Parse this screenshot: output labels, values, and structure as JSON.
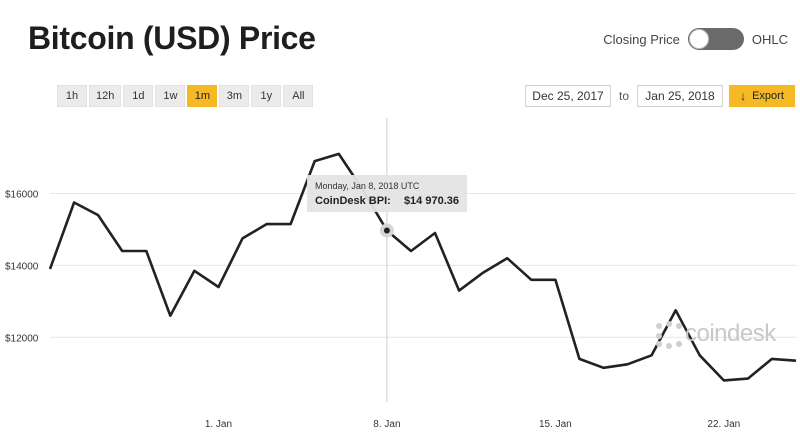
{
  "header": {
    "title": "Bitcoin (USD) Price",
    "toggle_left_label": "Closing Price",
    "toggle_right_label": "OHLC"
  },
  "range_buttons": [
    {
      "label": "1h",
      "active": false
    },
    {
      "label": "12h",
      "active": false
    },
    {
      "label": "1d",
      "active": false
    },
    {
      "label": "1w",
      "active": false
    },
    {
      "label": "1m",
      "active": true
    },
    {
      "label": "3m",
      "active": false
    },
    {
      "label": "1y",
      "active": false
    },
    {
      "label": "All",
      "active": false
    }
  ],
  "date_range": {
    "from": "Dec 25, 2017",
    "separator": "to",
    "to": "Jan 25, 2018"
  },
  "export": {
    "label": "Export",
    "icon": "download-arrow-icon"
  },
  "tooltip": {
    "date": "Monday, Jan 8, 2018 UTC",
    "label": "CoinDesk BPI:",
    "value": "$14 970.36"
  },
  "watermark": {
    "text": "coindesk"
  },
  "colors": {
    "accent": "#f4b924",
    "line": "#222222",
    "grid": "#e6e6e6"
  },
  "chart_data": {
    "type": "line",
    "title": "Bitcoin (USD) Price",
    "y_ticks": [
      {
        "value": 12000,
        "label": "$12000"
      },
      {
        "value": 14000,
        "label": "$14000"
      },
      {
        "value": 16000,
        "label": "$16000"
      }
    ],
    "x_ticks": [
      {
        "day": 7,
        "label": "1. Jan"
      },
      {
        "day": 14,
        "label": "8. Jan"
      },
      {
        "day": 21,
        "label": "15. Jan"
      },
      {
        "day": 28,
        "label": "22. Jan"
      }
    ],
    "ylim": [
      10200,
      18100
    ],
    "xlim": [
      0,
      31
    ],
    "grid": true,
    "highlight_index": 14,
    "series": [
      {
        "values": [
          13900,
          15750,
          15400,
          14400,
          14400,
          12600,
          13850,
          13400,
          14750,
          15150,
          15150,
          16900,
          17100,
          16100,
          14970,
          14400,
          14900,
          13300,
          13800,
          14200,
          13600,
          13600,
          11400,
          11150,
          11250,
          11500,
          12750,
          11500,
          10800,
          10850,
          11400,
          11350
        ]
      }
    ]
  }
}
